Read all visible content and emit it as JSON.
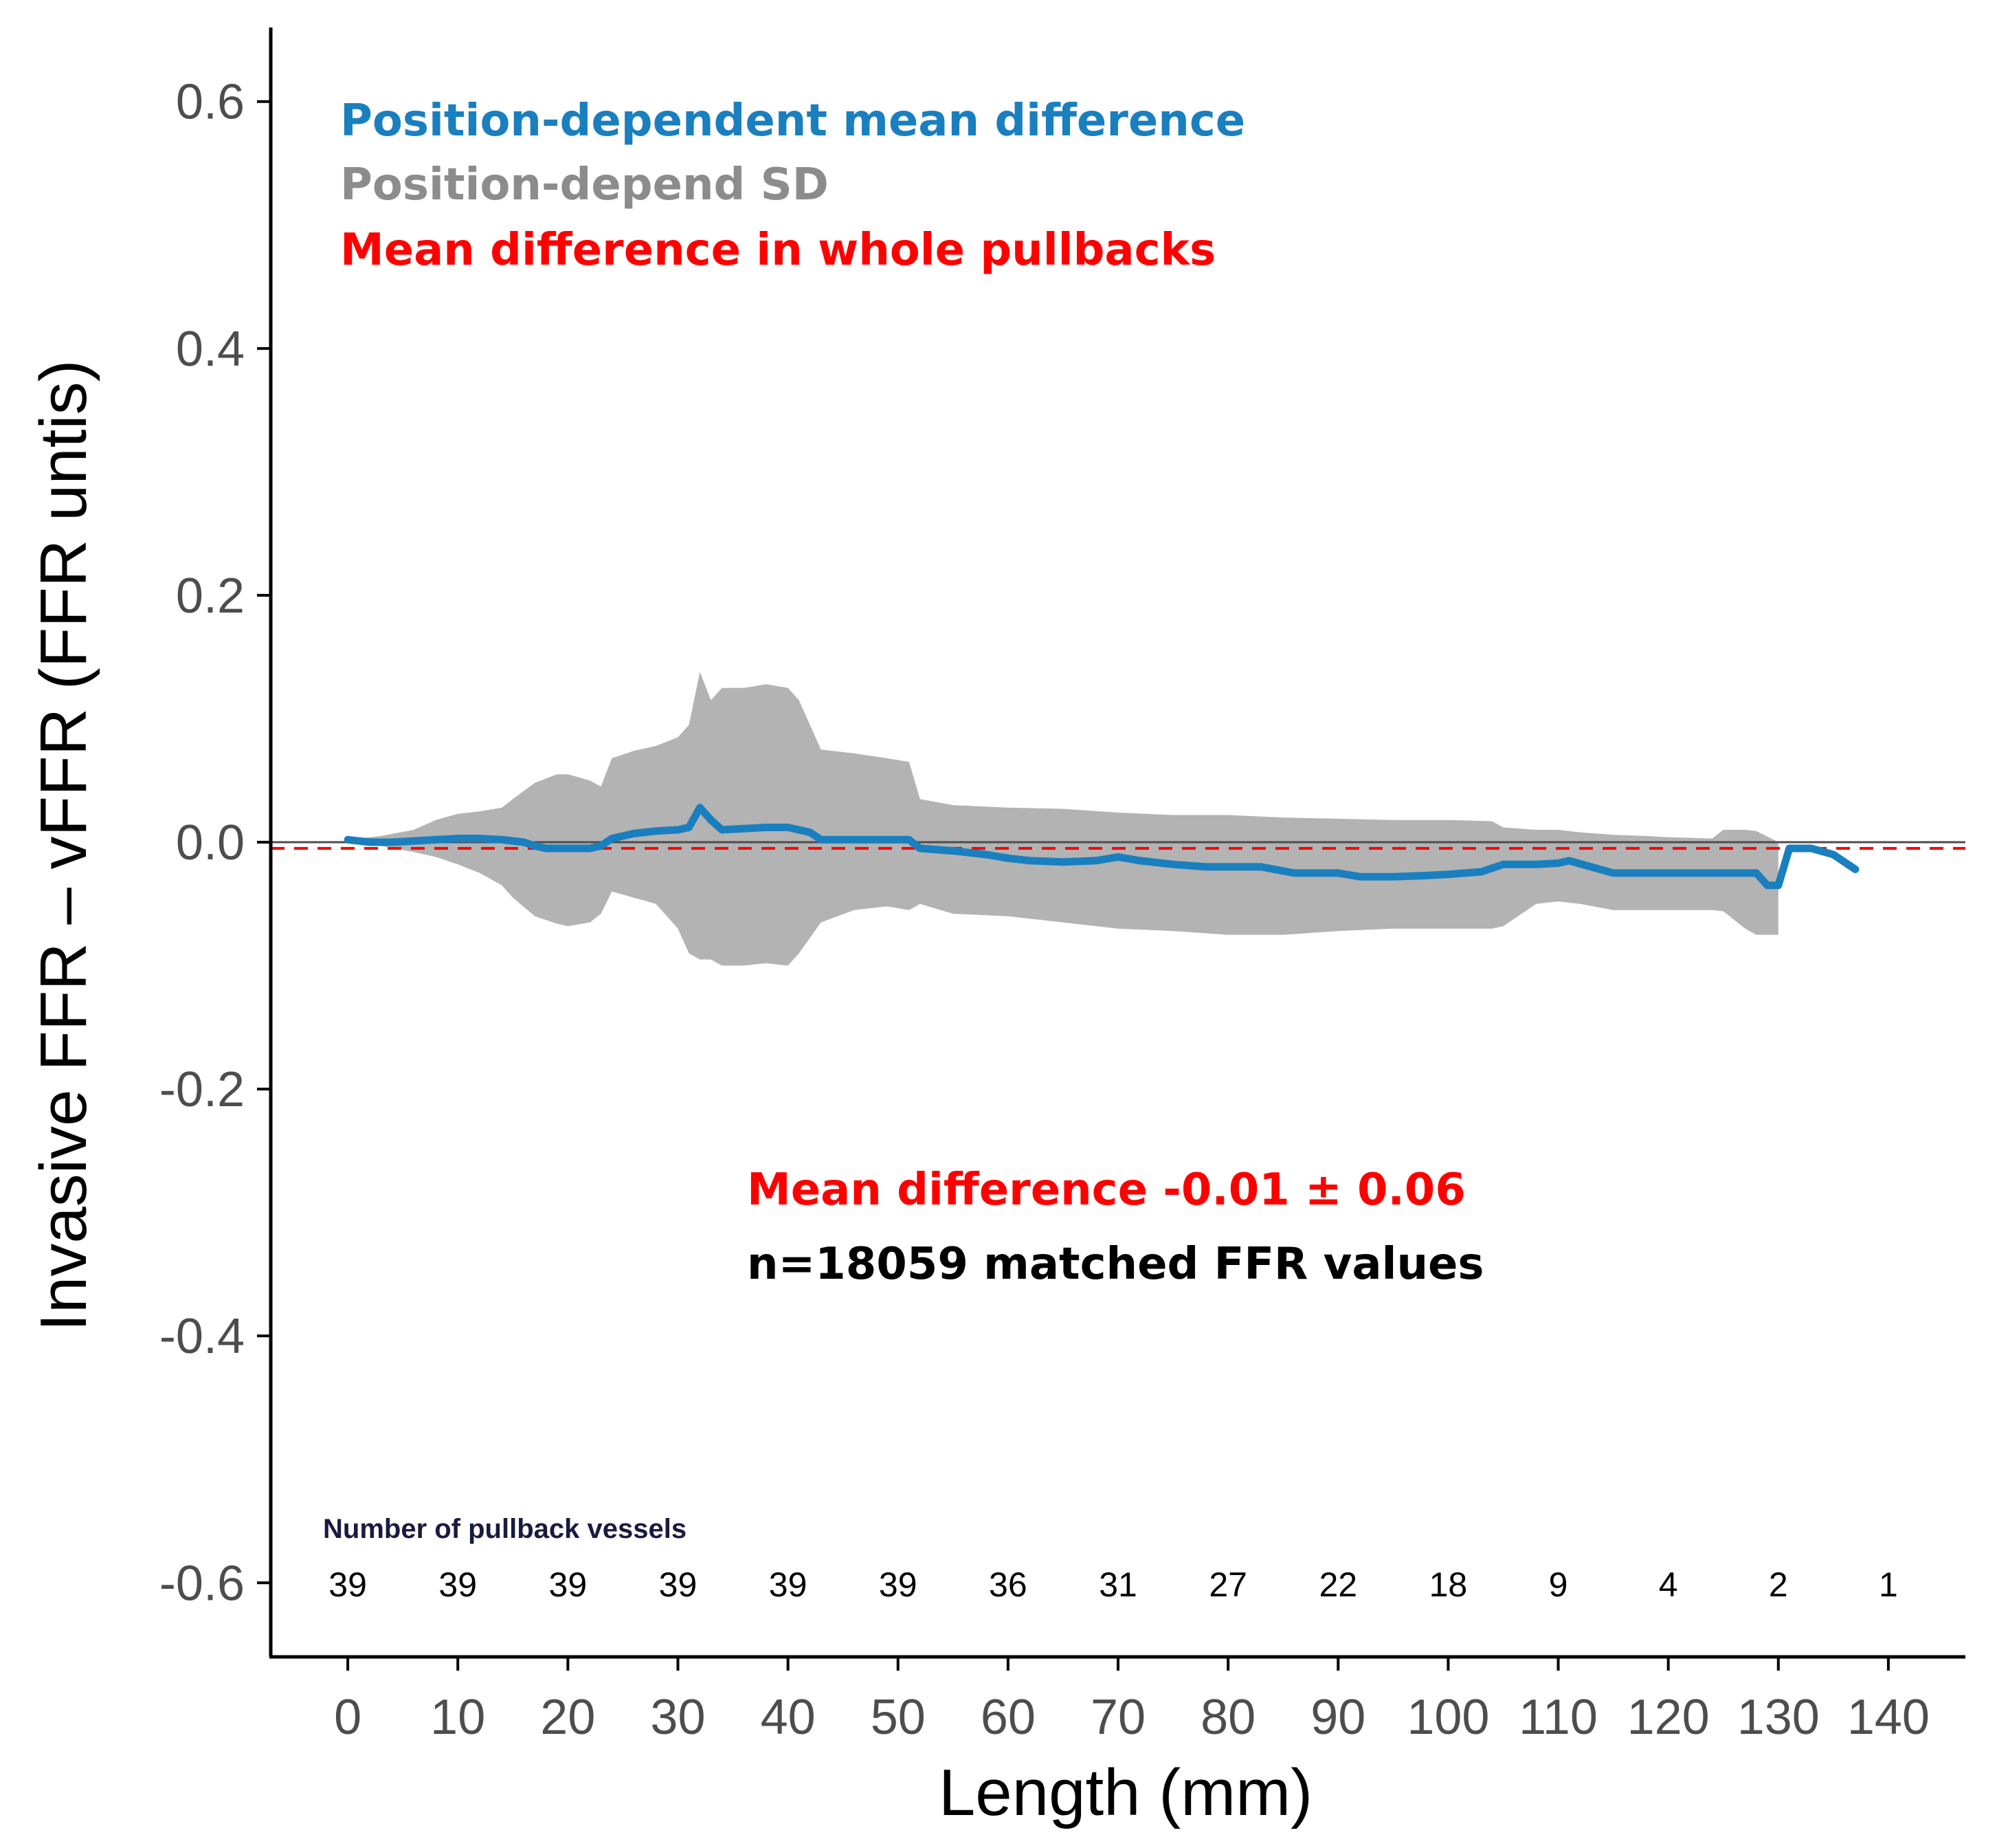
{
  "chart_data": {
    "type": "line",
    "xlabel": "Length (mm)",
    "ylabel": "Invasive FFR – vFFR (FFR untis)",
    "xlim": [
      -7,
      147
    ],
    "ylim": [
      -0.66,
      0.66
    ],
    "x_ticks": [
      0,
      10,
      20,
      30,
      40,
      50,
      60,
      70,
      80,
      90,
      100,
      110,
      120,
      130,
      140
    ],
    "y_ticks": [
      0.6,
      0.4,
      0.2,
      0.0,
      -0.2,
      -0.4,
      -0.6
    ],
    "y_tick_labels": [
      "0.6",
      "0.4",
      "0.2",
      "0.0",
      "-0.2",
      "-0.4",
      "-0.6"
    ],
    "legend": {
      "mean_line": "Position-dependent mean difference",
      "sd_band": "Position-depend SD",
      "whole_mean": "Mean difference in whole pullbacks"
    },
    "colors": {
      "mean_line": "#1a7fbf",
      "sd_band": "#b3b3b3",
      "whole_mean": "#ff0000",
      "legend_sd_text": "#8c8c8c"
    },
    "reference_line_y": 0.0,
    "whole_mean_difference_y": -0.005,
    "series": [
      {
        "name": "Position-dependent mean difference",
        "x": [
          0,
          2,
          4,
          6,
          8,
          10,
          12,
          14,
          16,
          17,
          18,
          20,
          22,
          23,
          24,
          26,
          28,
          30,
          31,
          32,
          33,
          34,
          36,
          38,
          40,
          42,
          43,
          45,
          48,
          50,
          51,
          52,
          55,
          58,
          60,
          62,
          65,
          68,
          70,
          72,
          75,
          78,
          80,
          83,
          86,
          88,
          90,
          92,
          95,
          98,
          100,
          103,
          105,
          108,
          110,
          111,
          113,
          115,
          118,
          120,
          123,
          125,
          128,
          129,
          130,
          131,
          133,
          135,
          137
        ],
        "y": [
          0.002,
          0.0,
          0.0,
          0.001,
          0.002,
          0.003,
          0.003,
          0.002,
          0.0,
          -0.003,
          -0.005,
          -0.005,
          -0.005,
          -0.003,
          0.003,
          0.007,
          0.009,
          0.01,
          0.012,
          0.028,
          0.018,
          0.01,
          0.011,
          0.012,
          0.012,
          0.008,
          0.002,
          0.002,
          0.002,
          0.002,
          0.002,
          -0.005,
          -0.007,
          -0.01,
          -0.013,
          -0.015,
          -0.016,
          -0.015,
          -0.012,
          -0.015,
          -0.018,
          -0.02,
          -0.02,
          -0.02,
          -0.025,
          -0.025,
          -0.025,
          -0.028,
          -0.028,
          -0.027,
          -0.026,
          -0.024,
          -0.018,
          -0.018,
          -0.017,
          -0.015,
          -0.02,
          -0.025,
          -0.025,
          -0.025,
          -0.025,
          -0.025,
          -0.025,
          -0.035,
          -0.035,
          -0.005,
          -0.005,
          -0.01,
          -0.022
        ]
      },
      {
        "name": "Position-depend SD",
        "x": [
          0,
          3,
          6,
          8,
          10,
          12,
          14,
          15,
          17,
          19,
          20,
          22,
          23,
          24,
          26,
          28,
          30,
          31,
          32,
          33,
          34,
          36,
          38,
          40,
          41,
          43,
          46,
          49,
          51,
          52,
          55,
          60,
          65,
          70,
          75,
          80,
          85,
          90,
          95,
          100,
          104,
          105,
          108,
          110,
          112,
          115,
          118,
          120,
          124,
          125,
          127,
          128,
          130
        ],
        "upper": [
          0.002,
          0.005,
          0.01,
          0.018,
          0.023,
          0.025,
          0.028,
          0.035,
          0.048,
          0.055,
          0.055,
          0.05,
          0.045,
          0.068,
          0.074,
          0.078,
          0.085,
          0.095,
          0.138,
          0.115,
          0.125,
          0.125,
          0.128,
          0.125,
          0.115,
          0.075,
          0.072,
          0.068,
          0.065,
          0.035,
          0.03,
          0.028,
          0.027,
          0.024,
          0.022,
          0.022,
          0.02,
          0.019,
          0.018,
          0.018,
          0.017,
          0.012,
          0.01,
          0.01,
          0.008,
          0.006,
          0.005,
          0.004,
          0.003,
          0.01,
          0.01,
          0.009,
          0.0
        ],
        "lower": [
          -0.001,
          -0.003,
          -0.008,
          -0.012,
          -0.018,
          -0.025,
          -0.035,
          -0.045,
          -0.06,
          -0.066,
          -0.068,
          -0.065,
          -0.058,
          -0.04,
          -0.045,
          -0.05,
          -0.07,
          -0.09,
          -0.095,
          -0.095,
          -0.1,
          -0.1,
          -0.098,
          -0.1,
          -0.09,
          -0.065,
          -0.055,
          -0.052,
          -0.055,
          -0.05,
          -0.058,
          -0.06,
          -0.065,
          -0.07,
          -0.072,
          -0.075,
          -0.075,
          -0.072,
          -0.07,
          -0.07,
          -0.07,
          -0.068,
          -0.05,
          -0.048,
          -0.05,
          -0.055,
          -0.055,
          -0.055,
          -0.055,
          -0.056,
          -0.07,
          -0.075,
          -0.075
        ]
      }
    ],
    "annotation": {
      "mean_text": "Mean difference -0.01 ± 0.06",
      "n_text": "n=18059 matched FFR values"
    },
    "pullback_counts": {
      "title": "Number of pullback vessels",
      "x": [
        0,
        10,
        20,
        30,
        40,
        50,
        60,
        70,
        80,
        90,
        100,
        110,
        120,
        130,
        140
      ],
      "counts": [
        "39",
        "39",
        "39",
        "39",
        "39",
        "39",
        "36",
        "31",
        "27",
        "22",
        "18",
        "9",
        "4",
        "2",
        "1"
      ]
    }
  }
}
